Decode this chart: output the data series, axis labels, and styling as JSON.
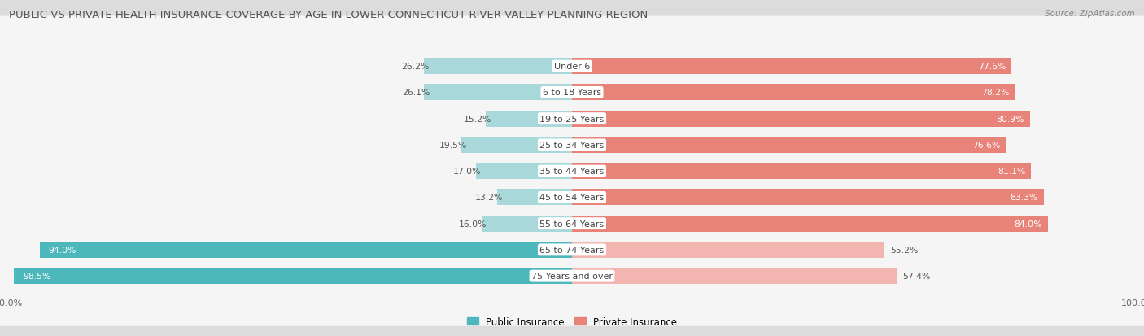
{
  "title": "PUBLIC VS PRIVATE HEALTH INSURANCE COVERAGE BY AGE IN LOWER CONNECTICUT RIVER VALLEY PLANNING REGION",
  "source": "Source: ZipAtlas.com",
  "categories": [
    "Under 6",
    "6 to 18 Years",
    "19 to 25 Years",
    "25 to 34 Years",
    "35 to 44 Years",
    "45 to 54 Years",
    "55 to 64 Years",
    "65 to 74 Years",
    "75 Years and over"
  ],
  "public_values": [
    26.2,
    26.1,
    15.2,
    19.5,
    17.0,
    13.2,
    16.0,
    94.0,
    98.5
  ],
  "private_values": [
    77.6,
    78.2,
    80.9,
    76.6,
    81.1,
    83.3,
    84.0,
    55.2,
    57.4
  ],
  "public_color_dark": "#4db8bc",
  "public_color_light": "#a8d8da",
  "private_color_dark": "#e8837a",
  "private_color_light": "#f2b5b0",
  "background_color": "#dcdcdc",
  "row_bg_color": "#f5f5f5",
  "bar_height": 0.62,
  "title_fontsize": 9.5,
  "label_fontsize": 8.0,
  "value_fontsize": 7.8,
  "legend_fontsize": 8.5,
  "source_fontsize": 7.5
}
